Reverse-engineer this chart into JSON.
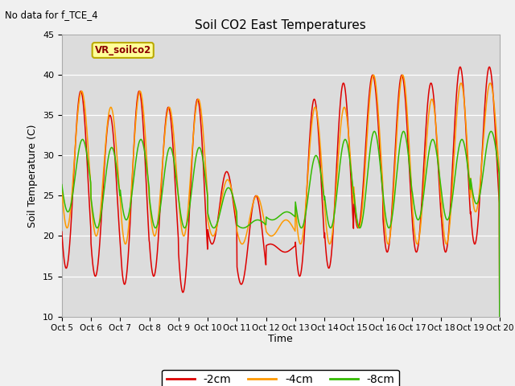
{
  "title": "Soil CO2 East Temperatures",
  "subtitle": "No data for f_TCE_4",
  "ylabel": "Soil Temperature (C)",
  "xlabel": "Time",
  "ylim": [
    10,
    45
  ],
  "bg_color": "#dcdcdc",
  "series_colors": {
    "-2cm": "#dd0000",
    "-4cm": "#ff9900",
    "-8cm": "#33bb00"
  },
  "legend_label": "VR_soilco2",
  "x_tick_labels": [
    "Oct 5",
    "Oct 6",
    "Oct 7",
    "Oct 8",
    "Oct 9",
    "Oct 10",
    "Oct 11",
    "Oct 12",
    "Oct 13",
    "Oct 14",
    "Oct 15",
    "Oct 16",
    "Oct 17",
    "Oct 18",
    "Oct 19",
    "Oct 20"
  ],
  "legend_entries": [
    "-2cm",
    "-4cm",
    "-8cm"
  ],
  "yticks": [
    10,
    15,
    20,
    25,
    30,
    35,
    40,
    45
  ],
  "figsize": [
    6.4,
    4.8
  ],
  "dpi": 100
}
